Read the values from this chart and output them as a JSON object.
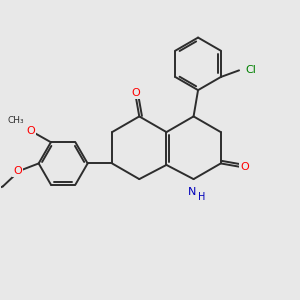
{
  "bg_color": "#e8e8e8",
  "bond_color": "#2d2d2d",
  "bond_width": 1.4,
  "atom_colors": {
    "O": "#ff0000",
    "N": "#0000bb",
    "Cl": "#008000",
    "C": "#2d2d2d"
  },
  "font_size": 8.0,
  "figsize": [
    3.0,
    3.0
  ],
  "dpi": 100
}
